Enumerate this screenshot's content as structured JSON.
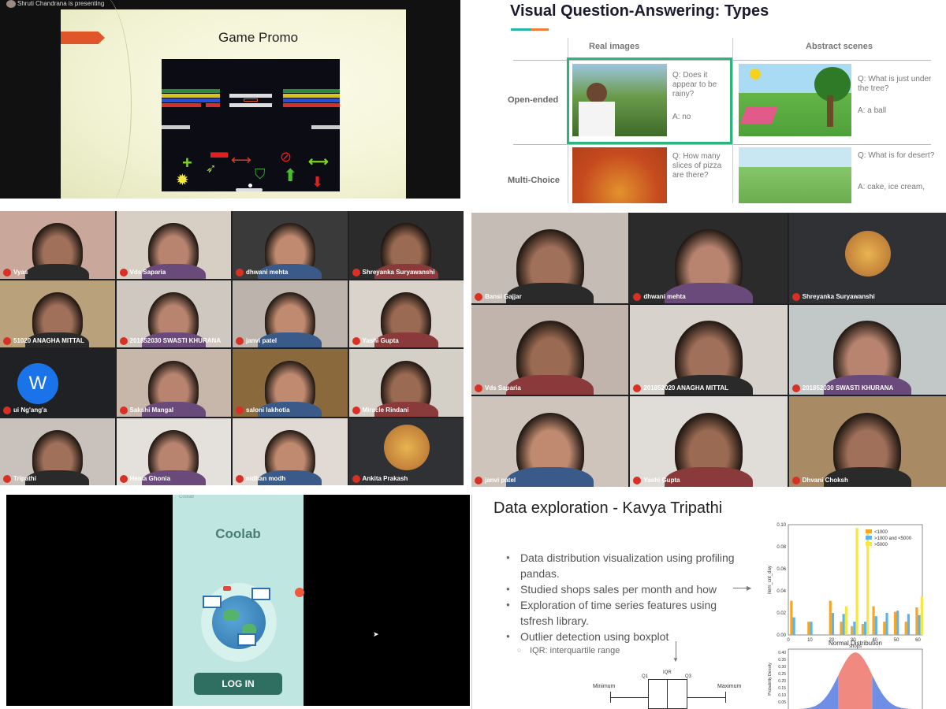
{
  "game_panel": {
    "presenter": "Shruti Chandrana is presenting",
    "slide_title": "Game Promo"
  },
  "vqa_panel": {
    "title": "Visual Question-Answering: Types",
    "col_real": "Real images",
    "col_abstract": "Abstract scenes",
    "row_open": "Open-ended",
    "row_multi": "Multi-Choice",
    "q1": "Q: Does it appear to be rainy?",
    "a1": "A: no",
    "q2": "Q: What is just under the tree?",
    "a2": "A: a ball",
    "q3": "Q: How many slices of pizza are there?",
    "q4": "Q: What is for desert?",
    "a4": "A: cake, ice cream,"
  },
  "grid1": {
    "tiles": [
      {
        "name": "Vyas"
      },
      {
        "name": "Vds Saparia"
      },
      {
        "name": "dhwani mehta"
      },
      {
        "name": "Shreyanka Suryawanshi"
      },
      {
        "name": "51020 ANAGHA MITTAL"
      },
      {
        "name": "201852030 SWASTI KHURANA"
      },
      {
        "name": "janvi patel"
      },
      {
        "name": "Yashi Gupta"
      },
      {
        "name": "ui Ng'ang'a"
      },
      {
        "name": "Sakshi Mangal"
      },
      {
        "name": "saloni lakhotia"
      },
      {
        "name": "Miracle Rindani"
      },
      {
        "name": "Tripathi"
      },
      {
        "name": "Hema Ghonia"
      },
      {
        "name": "nidhan modh"
      },
      {
        "name": "Ankita Prakash"
      }
    ],
    "avatar_letter": "W"
  },
  "grid2": {
    "tiles": [
      {
        "name": "Bansi Gajjar"
      },
      {
        "name": "dhwani mehta"
      },
      {
        "name": "Shreyanka Suryawanshi"
      },
      {
        "name": "Vds Saparia"
      },
      {
        "name": "201852020 ANAGHA MITTAL"
      },
      {
        "name": "201852030 SWASTI KHURANA"
      },
      {
        "name": "janvi patel"
      },
      {
        "name": "Yashi Gupta"
      },
      {
        "name": "Dhvani Choksh"
      }
    ]
  },
  "coolab_panel": {
    "header": "Coolab",
    "app_name": "Coolab",
    "login_label": "LOG IN"
  },
  "data_panel": {
    "title": "Data exploration - Kavya Tripathi",
    "bullets": [
      "Data distribution visualization using profiling pandas.",
      "Studied shops sales per month and how",
      "Exploration of time series features using tsfresh library.",
      "Outlier detection using boxplot"
    ],
    "sub_bullet": "IQR: interquartile range",
    "box_labels": {
      "minimum": "Minimum",
      "maximum": "Maximum",
      "q1": "Q1",
      "q3": "Q3",
      "iqr": "IQR"
    }
  },
  "chart_data": [
    {
      "type": "bar",
      "x": [
        2,
        10,
        20,
        25,
        30,
        35,
        40,
        45,
        50,
        55,
        60
      ],
      "xlabel": "shops",
      "ylabel": "item_cnt_day",
      "ylim": [
        0,
        0.1
      ],
      "yticks": [
        "0.00",
        "0.02",
        "0.04",
        "0.06",
        "0.08",
        "0.10"
      ],
      "xticks": [
        "0",
        "10",
        "20",
        "30",
        "40",
        "50",
        "60"
      ],
      "legend_position": "top-right",
      "series": [
        {
          "name": "<1000",
          "color": "#f5a623",
          "values": [
            0.031,
            0.012,
            0.031,
            0.012,
            0.008,
            0.01,
            0.026,
            0.012,
            0.021,
            0.012,
            0.025
          ]
        },
        {
          "name": ">1000 and <5000",
          "color": "#5ab4f0",
          "values": [
            0.016,
            0.012,
            0.02,
            0.019,
            0.012,
            0.012,
            0.017,
            0.02,
            0.022,
            0.019,
            0.018
          ]
        },
        {
          "name": ">5000",
          "color": "#f5e642",
          "values": [
            0.0,
            0.0,
            0.0,
            0.026,
            0.097,
            0.092,
            0.0,
            0.0,
            0.0,
            0.0,
            0.035
          ]
        }
      ]
    },
    {
      "type": "area",
      "title": "Normal Distribution",
      "ylabel": "Probability Density",
      "ylim": [
        0,
        0.4
      ],
      "yticks": [
        "0.40",
        "0.35",
        "0.30",
        "0.25",
        "0.20",
        "0.15",
        "0.10",
        "0.05"
      ]
    }
  ]
}
